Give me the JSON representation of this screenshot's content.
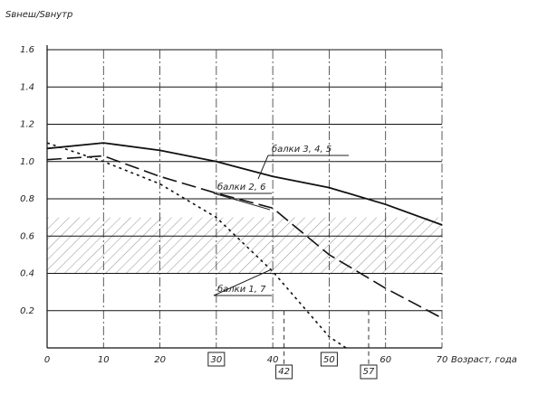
{
  "chart_data": {
    "type": "line",
    "y_label": "Sвнеш/Sвнутр",
    "x_label": "Возраст, года",
    "xlim": [
      0,
      70
    ],
    "ylim": [
      0,
      1.6
    ],
    "xticks": [
      0,
      10,
      20,
      30,
      40,
      50,
      60,
      70
    ],
    "yticks": [
      0.2,
      0.4,
      0.6,
      {
        "value": 0.8,
        "label": "0.8"
      },
      {
        "value": 1,
        "label": "1.0"
      },
      1.2,
      1.4,
      1.6
    ],
    "boxed_ticks": [
      30,
      50
    ],
    "marked_ages": [
      42,
      57
    ],
    "band": [
      0.4,
      0.7
    ],
    "grid": true,
    "series": [
      {
        "name": "балки 3, 4, 5",
        "color": "#111",
        "style": "solid",
        "x": [
          0,
          10,
          20,
          30,
          40,
          50,
          60,
          70
        ],
        "values": [
          1.07,
          1.1,
          1.06,
          1.0,
          0.92,
          0.86,
          0.77,
          0.66
        ]
      },
      {
        "name": "балки 2, 6",
        "color": "#111",
        "style": "dash",
        "x": [
          0,
          10,
          20,
          30,
          40,
          50,
          60,
          70
        ],
        "values": [
          1.01,
          1.03,
          0.92,
          0.83,
          0.75,
          0.5,
          0.32,
          0.16
        ]
      },
      {
        "name": "балки 1, 7",
        "color": "#111",
        "style": "dot",
        "x": [
          0,
          10,
          20,
          30,
          40,
          50,
          53
        ],
        "values": [
          1.1,
          1.0,
          0.88,
          0.7,
          0.41,
          0.06,
          0
        ]
      }
    ]
  }
}
